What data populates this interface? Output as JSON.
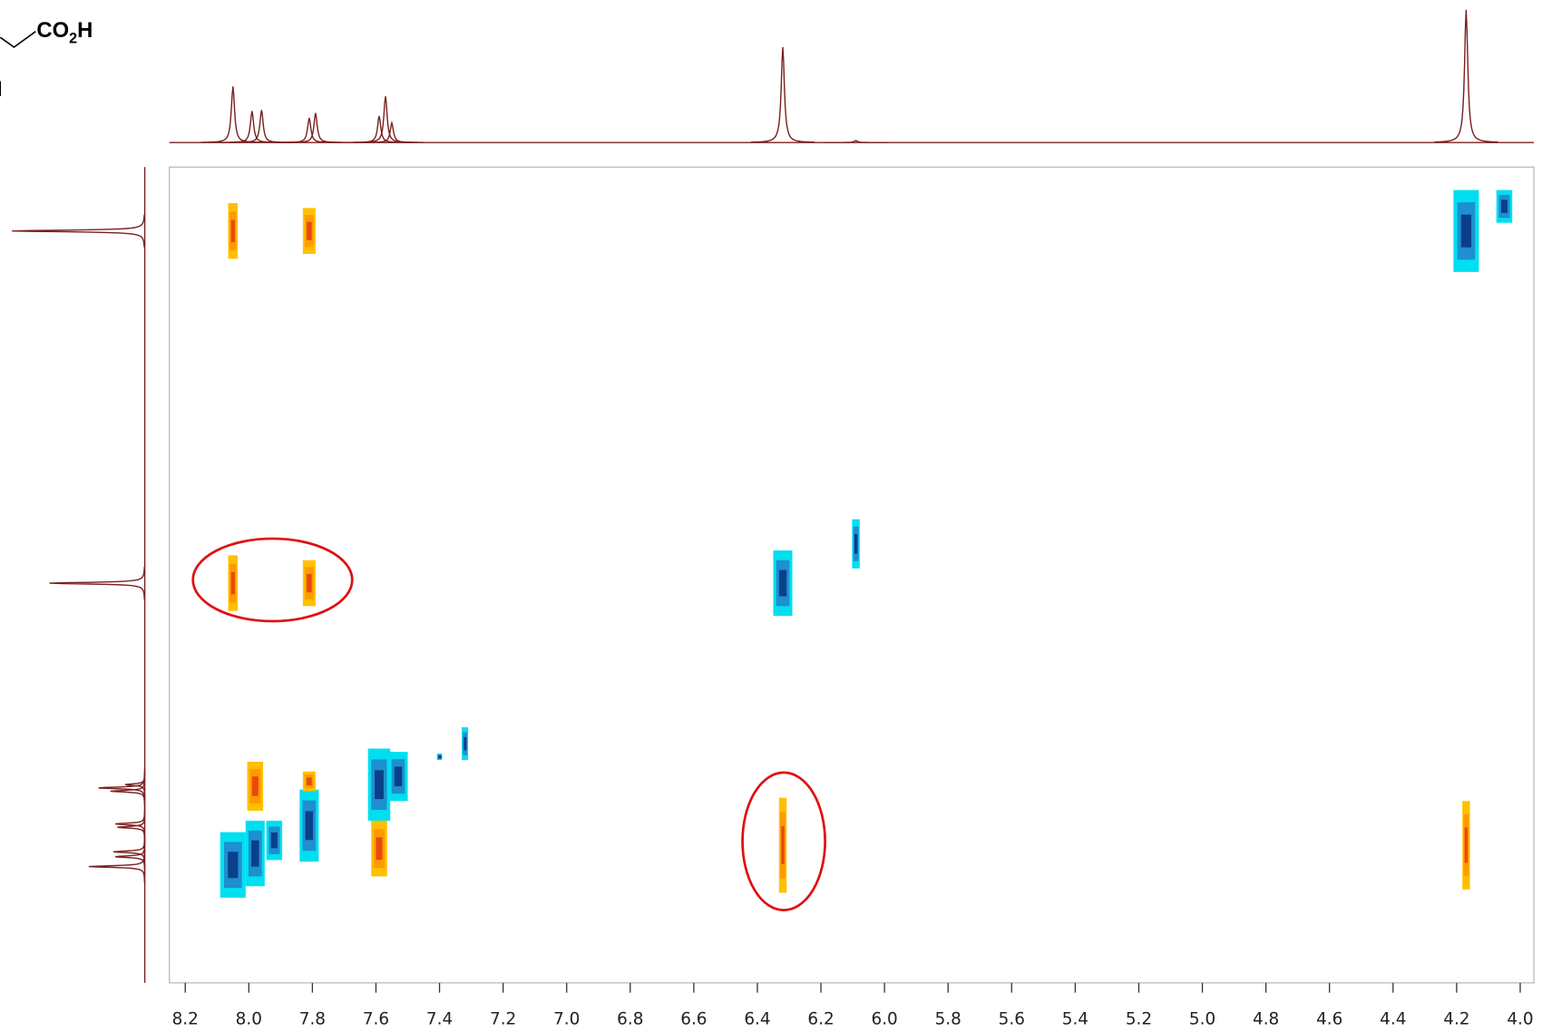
{
  "structure": {
    "acid_label": {
      "main": "CO",
      "subscript": "2",
      "end": "H"
    },
    "fragment_label": "I"
  },
  "chart_data": {
    "type": "nmr2d",
    "xlim": [
      8.25,
      3.957
    ],
    "ylim": [
      3.78,
      8.76
    ],
    "xticks": [
      8.2,
      {
        "value": 8,
        "label": "8.0"
      },
      7.8,
      7.6,
      7.4,
      7.2,
      {
        "value": 7,
        "label": "7.0"
      },
      6.8,
      6.6,
      6.4,
      6.2,
      {
        "value": 6,
        "label": "6.0"
      },
      5.8,
      5.6,
      5.4,
      5.2,
      {
        "value": 5,
        "label": "5.0"
      },
      4.8,
      4.6,
      4.4,
      4.2,
      {
        "value": 4,
        "label": "4.0"
      }
    ],
    "line_color": "#7a1f1f",
    "colors": {
      "positive": [
        "#ffc000",
        "#ff9a00",
        "#e8490f"
      ],
      "negative": [
        "#00dff0",
        "#1e8fd0",
        "#0a3f8a"
      ]
    },
    "cross_peaks": [
      {
        "x": 8.05,
        "y": 4.17,
        "phase": "positive",
        "dx": 0.015,
        "dy": 0.17
      },
      {
        "x": 7.81,
        "y": 4.17,
        "phase": "positive",
        "dx": 0.02,
        "dy": 0.14
      },
      {
        "x": 4.17,
        "y": 4.17,
        "phase": "negative",
        "dx": 0.04,
        "dy": 0.25
      },
      {
        "x": 4.05,
        "y": 4.02,
        "phase": "negative",
        "dx": 0.025,
        "dy": 0.1
      },
      {
        "x": 8.05,
        "y": 6.32,
        "phase": "positive",
        "dx": 0.015,
        "dy": 0.17
      },
      {
        "x": 7.81,
        "y": 6.32,
        "phase": "positive",
        "dx": 0.02,
        "dy": 0.14
      },
      {
        "x": 6.32,
        "y": 6.32,
        "phase": "negative",
        "dx": 0.03,
        "dy": 0.2
      },
      {
        "x": 6.09,
        "y": 6.08,
        "phase": "negative",
        "dx": 0.012,
        "dy": 0.15
      },
      {
        "x": 6.32,
        "y": 7.92,
        "phase": "positive",
        "dx": 0.012,
        "dy": 0.29
      },
      {
        "x": 4.17,
        "y": 7.92,
        "phase": "positive",
        "dx": 0.012,
        "dy": 0.27
      },
      {
        "x": 8.05,
        "y": 8.04,
        "phase": "negative",
        "dx": 0.04,
        "dy": 0.2
      },
      {
        "x": 7.98,
        "y": 7.97,
        "phase": "negative",
        "dx": 0.03,
        "dy": 0.2
      },
      {
        "x": 7.98,
        "y": 7.56,
        "phase": "positive",
        "dx": 0.025,
        "dy": 0.15
      },
      {
        "x": 7.81,
        "y": 7.8,
        "phase": "negative",
        "dx": 0.03,
        "dy": 0.22
      },
      {
        "x": 7.81,
        "y": 7.53,
        "phase": "positive",
        "dx": 0.02,
        "dy": 0.06
      },
      {
        "x": 7.92,
        "y": 7.89,
        "phase": "negative",
        "dx": 0.025,
        "dy": 0.12
      },
      {
        "x": 7.59,
        "y": 7.55,
        "phase": "negative",
        "dx": 0.035,
        "dy": 0.22
      },
      {
        "x": 7.59,
        "y": 7.94,
        "phase": "positive",
        "dx": 0.025,
        "dy": 0.17
      },
      {
        "x": 7.53,
        "y": 7.5,
        "phase": "negative",
        "dx": 0.03,
        "dy": 0.15
      },
      {
        "x": 7.32,
        "y": 7.3,
        "phase": "negative",
        "dx": 0.01,
        "dy": 0.1
      },
      {
        "x": 7.4,
        "y": 7.38,
        "phase": "negative",
        "dx": 0.008,
        "dy": 0.02
      }
    ],
    "projection_lim": [
      0,
      140
    ],
    "projection_top": [
      {
        "ppm": 8.05,
        "height": 57
      },
      {
        "ppm": 7.99,
        "height": 32
      },
      {
        "ppm": 7.96,
        "height": 33
      },
      {
        "ppm": 7.81,
        "height": 25
      },
      {
        "ppm": 7.79,
        "height": 30
      },
      {
        "ppm": 7.59,
        "height": 27
      },
      {
        "ppm": 7.57,
        "height": 47
      },
      {
        "ppm": 7.55,
        "height": 20
      },
      {
        "ppm": 6.32,
        "height": 97
      },
      {
        "ppm": 6.09,
        "height": 2
      },
      {
        "ppm": 4.17,
        "height": 135
      }
    ],
    "projection_left": [
      {
        "ppm": 8.05,
        "height": 57
      },
      {
        "ppm": 7.99,
        "height": 30
      },
      {
        "ppm": 7.96,
        "height": 32
      },
      {
        "ppm": 7.81,
        "height": 28
      },
      {
        "ppm": 7.79,
        "height": 30
      },
      {
        "ppm": 7.59,
        "height": 35
      },
      {
        "ppm": 7.57,
        "height": 47
      },
      {
        "ppm": 7.55,
        "height": 20
      },
      {
        "ppm": 6.32,
        "height": 97
      },
      {
        "ppm": 4.17,
        "height": 135
      }
    ]
  }
}
